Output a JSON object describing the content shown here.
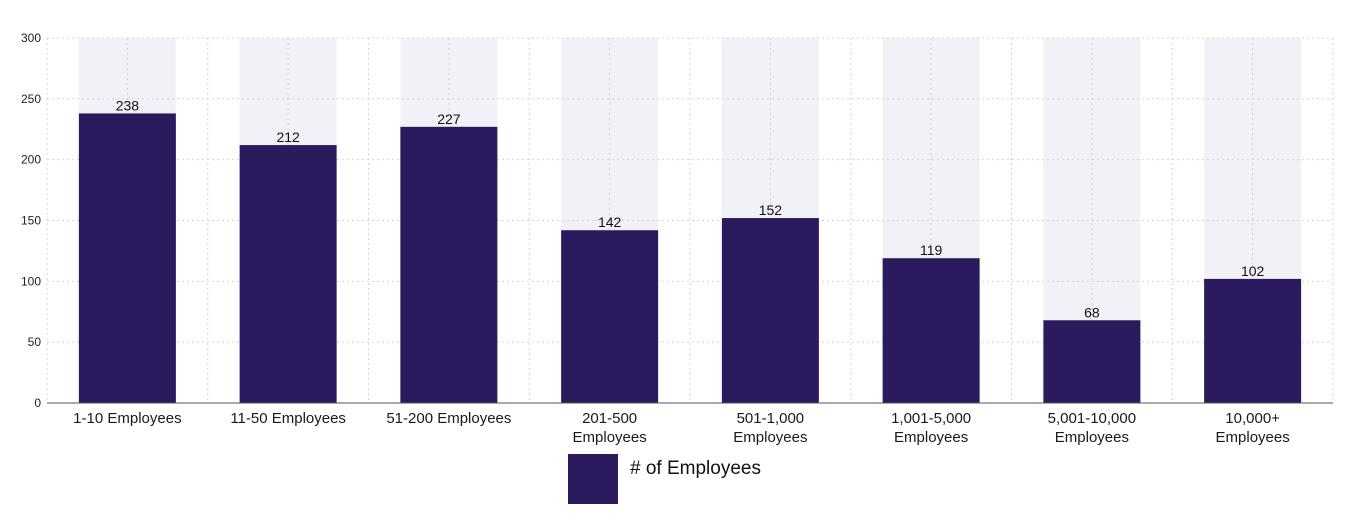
{
  "chart_data": {
    "type": "bar",
    "categories": [
      [
        "1-10 Employees"
      ],
      [
        "11-50 Employees"
      ],
      [
        "51-200 Employees"
      ],
      [
        "201-500",
        "Employees"
      ],
      [
        "501-1,000",
        "Employees"
      ],
      [
        "1,001-5,000",
        "Employees"
      ],
      [
        "5,001-10,000",
        "Employees"
      ],
      [
        "10,000+",
        "Employees"
      ]
    ],
    "series": [
      {
        "name": "# of Employees",
        "values": [
          238,
          212,
          227,
          142,
          152,
          119,
          68,
          102
        ]
      }
    ],
    "ylim": [
      0,
      300
    ],
    "yticks": [
      0,
      50,
      100,
      150,
      200,
      250,
      300
    ],
    "colors": {
      "bar": "#2c1a5e",
      "bar_background": "#f1f2f8",
      "grid": "#d4d4d4",
      "axis": "#555555"
    },
    "legend_position": "bottom-center",
    "grid": true
  }
}
